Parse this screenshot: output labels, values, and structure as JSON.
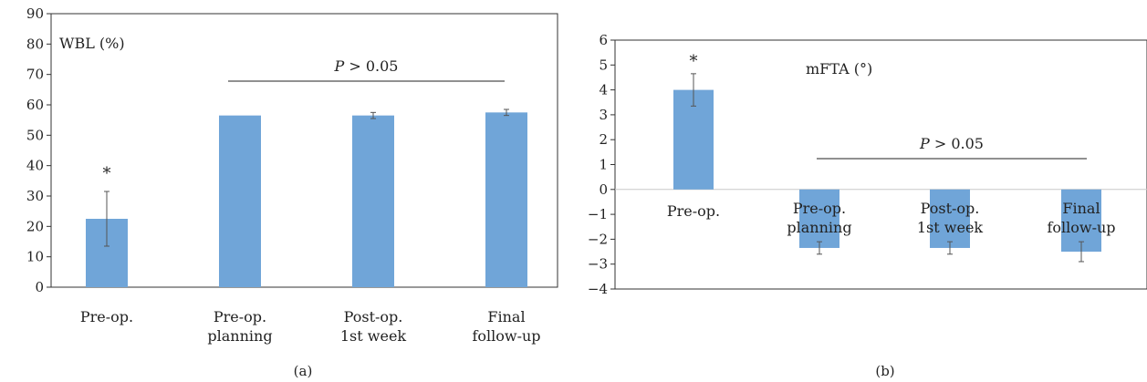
{
  "chart_data": [
    {
      "type": "bar",
      "panel_label": "(a)",
      "ylabel": "WBL (%)",
      "categories": [
        [
          "Pre-op."
        ],
        [
          "Pre-op.",
          "planning"
        ],
        [
          "Post-op.",
          "1st week"
        ],
        [
          "Final",
          "follow-up"
        ]
      ],
      "values": [
        22.5,
        56.5,
        56.5,
        57.5
      ],
      "errors": [
        9,
        0,
        1,
        1
      ],
      "ylim": [
        0,
        90
      ],
      "yticks": [
        0,
        10,
        20,
        30,
        40,
        50,
        60,
        70,
        80,
        90
      ],
      "significance_marker": {
        "label": "*",
        "category_index": 0
      },
      "bracket": {
        "label_italic": "P",
        "label_rest": " > 0.05",
        "from_index": 1,
        "to_index": 3
      },
      "color": "#70a5d8",
      "grid": false
    },
    {
      "type": "bar",
      "panel_label": "(b)",
      "ylabel": "mFTA (°)",
      "categories": [
        [
          "Pre-op."
        ],
        [
          "Pre-op.",
          "planning"
        ],
        [
          "Post-op.",
          "1st week"
        ],
        [
          "Final",
          "follow-up"
        ]
      ],
      "values": [
        4.0,
        -2.35,
        -2.35,
        -2.5
      ],
      "errors": [
        0.65,
        0.25,
        0.25,
        0.4
      ],
      "ylim": [
        -4,
        6
      ],
      "yticks": [
        -4,
        -3,
        -2,
        -1,
        0,
        1,
        2,
        3,
        4,
        5,
        6
      ],
      "significance_marker": {
        "label": "*",
        "category_index": 0
      },
      "bracket": {
        "label_italic": "P",
        "label_rest": " > 0.05",
        "from_index": 1,
        "to_index": 3
      },
      "color": "#70a5d8",
      "grid": false
    }
  ]
}
